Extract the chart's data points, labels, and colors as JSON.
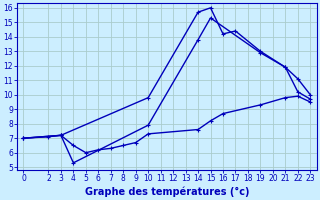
{
  "background_color": "#cceeff",
  "grid_color": "#aacccc",
  "line_color": "#0000bb",
  "spine_color": "#0000bb",
  "xlim": [
    -0.5,
    23.5
  ],
  "ylim": [
    4.8,
    16.3
  ],
  "yticks": [
    5,
    6,
    7,
    8,
    9,
    10,
    11,
    12,
    13,
    14,
    15,
    16
  ],
  "xticks": [
    0,
    2,
    3,
    4,
    5,
    6,
    7,
    8,
    9,
    10,
    11,
    12,
    13,
    14,
    15,
    16,
    17,
    18,
    19,
    20,
    21,
    22,
    23
  ],
  "xlabel": "Graphe des températures (°c)",
  "line1_x": [
    0,
    2,
    3,
    10,
    14,
    15,
    16,
    17,
    19,
    21,
    22,
    23
  ],
  "line1_y": [
    7.0,
    7.1,
    7.2,
    9.8,
    15.7,
    16.0,
    14.2,
    14.4,
    13.0,
    11.9,
    11.1,
    10.0
  ],
  "line2_x": [
    0,
    3,
    4,
    10,
    14,
    15,
    19,
    21,
    22,
    23
  ],
  "line2_y": [
    7.0,
    7.2,
    5.3,
    7.9,
    13.8,
    15.3,
    12.9,
    11.9,
    10.2,
    9.7
  ],
  "line3_x": [
    0,
    3,
    4,
    5,
    6,
    7,
    8,
    9,
    10,
    14,
    15,
    16,
    19,
    21,
    22,
    23
  ],
  "line3_y": [
    7.0,
    7.2,
    6.5,
    6.0,
    6.2,
    6.3,
    6.5,
    6.7,
    7.3,
    7.6,
    8.2,
    8.7,
    9.3,
    9.8,
    9.9,
    9.5
  ],
  "tick_fontsize": 5.5,
  "xlabel_fontsize": 7.0,
  "linewidth": 1.0,
  "markersize": 3.5,
  "markeredgewidth": 0.8
}
